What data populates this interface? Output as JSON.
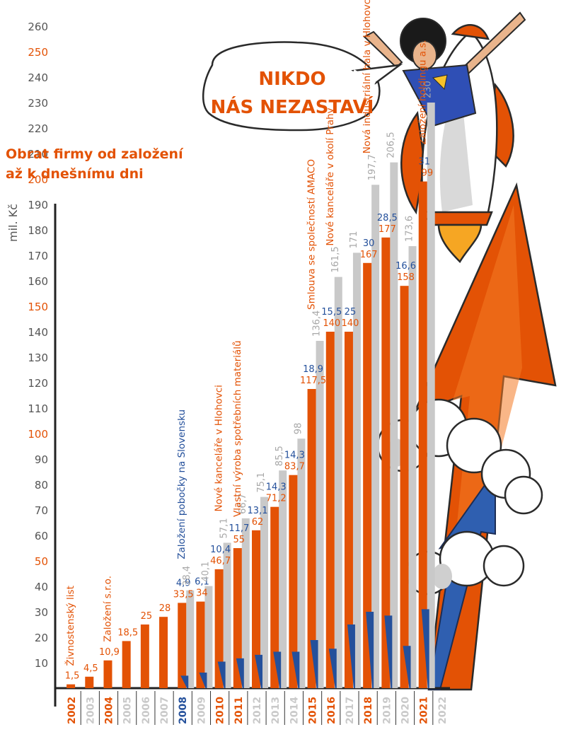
{
  "title_line1": "Obrat firmy od založení",
  "title_line2": "až k dnešnímu dni",
  "speech_line1": "NIKDO",
  "speech_line2": "NÁS NEZASTAVÍ",
  "colors": {
    "orange": "#e35205",
    "blue": "#24509b",
    "gray": "#c9c9c9",
    "axis": "#222222",
    "tick_gray": "#555555"
  },
  "chart_data": {
    "type": "bar",
    "ylabel": "mil. Kč",
    "ylim": [
      0,
      260
    ],
    "yticks": [
      10,
      20,
      30,
      40,
      50,
      60,
      70,
      80,
      90,
      100,
      110,
      120,
      130,
      140,
      150,
      160,
      170,
      180,
      190,
      200,
      210,
      220,
      230,
      240,
      250,
      260
    ],
    "yticks_highlight": [
      50,
      100,
      150,
      200,
      250
    ],
    "categories": [
      "2002",
      "2003",
      "2004",
      "2005",
      "2006",
      "2007",
      "2008",
      "2009",
      "2010",
      "2011",
      "2012",
      "2013",
      "2014",
      "2015",
      "2016",
      "2017",
      "2018",
      "2019",
      "2020",
      "2021",
      "2022"
    ],
    "category_colors": [
      "orange",
      "gray",
      "orange",
      "gray",
      "gray",
      "gray",
      "blue",
      "gray",
      "orange",
      "orange",
      "gray",
      "gray",
      "gray",
      "orange",
      "orange",
      "gray",
      "orange",
      "gray",
      "gray",
      "orange",
      "gray"
    ],
    "series": [
      {
        "name": "",
        "color": "#c9c9c9",
        "values": [
          null,
          null,
          null,
          null,
          null,
          null,
          38.4,
          40.1,
          57.1,
          66.7,
          75.1,
          85.5,
          98,
          136.4,
          161.5,
          171,
          197.7,
          206.5,
          173.6,
          230,
          null
        ],
        "labels": [
          "",
          "",
          "",
          "",
          "",
          "",
          "38,4",
          "40,1",
          "57,1",
          "66,7",
          "75,1",
          "85,5",
          "98",
          "136,4",
          "161,5",
          "171",
          "197,7",
          "206,5",
          "173,6",
          "230",
          ""
        ]
      },
      {
        "name": "",
        "color": "#e35205",
        "values": [
          1.5,
          4.5,
          10.9,
          18.5,
          25,
          28,
          33.5,
          34,
          46.7,
          55,
          62,
          71.2,
          83.7,
          117.5,
          140,
          140,
          167,
          177,
          158,
          199,
          null
        ],
        "labels": [
          "1,5",
          "4,5",
          "10,9",
          "18,5",
          "25",
          "28",
          "33,5",
          "34",
          "46,7",
          "55",
          "62",
          "71,2",
          "83,7",
          "117,5",
          "140",
          "140",
          "167",
          "177",
          "158",
          "199",
          ""
        ]
      },
      {
        "name": "",
        "color": "#24509b",
        "values": [
          null,
          null,
          null,
          null,
          null,
          null,
          4.9,
          6.1,
          10.4,
          11.7,
          13.1,
          14.3,
          14.3,
          18.9,
          15.5,
          25,
          30,
          28.5,
          16.6,
          31,
          null
        ],
        "labels": [
          "",
          "",
          "",
          "",
          "",
          "",
          "4,9",
          "6,1",
          "10,4",
          "11,7",
          "13,1",
          "14,3",
          "14,3",
          "18,9",
          "15,5",
          "25",
          "30",
          "28,5",
          "16,6",
          "31",
          ""
        ]
      }
    ],
    "milestones": [
      {
        "year": "2002",
        "text": "Živnostenský list",
        "color": "orange"
      },
      {
        "year": "2004",
        "text": "Založení s.r.o.",
        "color": "orange"
      },
      {
        "year": "2008",
        "text": "Založení pobočky na Slovensku",
        "color": "blue"
      },
      {
        "year": "2010",
        "text": "Nové kanceláře v Hlohovci",
        "color": "orange"
      },
      {
        "year": "2011",
        "text": "Vlastní výroba spotřebních materiálů",
        "color": "orange"
      },
      {
        "year": "2015",
        "text": "Smlouva se společností AMACO",
        "color": "orange"
      },
      {
        "year": "2016",
        "text": "Nové kanceláře v okolí Prahy",
        "color": "orange"
      },
      {
        "year": "2018",
        "text": "Nová industriální hala v Hlohovci",
        "color": "orange"
      },
      {
        "year": "2021",
        "text": "Založení holdingu a.s.",
        "color": "orange"
      }
    ]
  }
}
